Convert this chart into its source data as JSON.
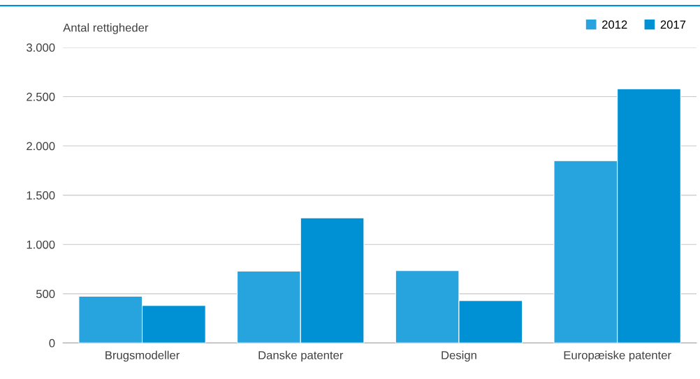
{
  "chart_data": {
    "type": "bar",
    "ylabel": "Antal rettigheder",
    "categories": [
      "Brugsmodeller",
      "Danske patenter",
      "Design",
      "Europæiske patenter"
    ],
    "series": [
      {
        "name": "2012",
        "color": "#27a3dd",
        "values": [
          475,
          730,
          735,
          1850
        ]
      },
      {
        "name": "2017",
        "color": "#0090d4",
        "values": [
          380,
          1270,
          430,
          2580
        ]
      }
    ],
    "ylim": [
      0,
      3000
    ],
    "yticks": [
      0,
      {
        "value": 500,
        "label": "500"
      },
      {
        "value": 1000,
        "label": "1.000"
      },
      {
        "value": 1500,
        "label": "1.500"
      },
      {
        "value": 2000,
        "label": "2.000"
      },
      {
        "value": 2500,
        "label": "2.500"
      },
      {
        "value": 3000,
        "label": "3.000"
      }
    ],
    "grid": "y",
    "legend": "top right"
  }
}
